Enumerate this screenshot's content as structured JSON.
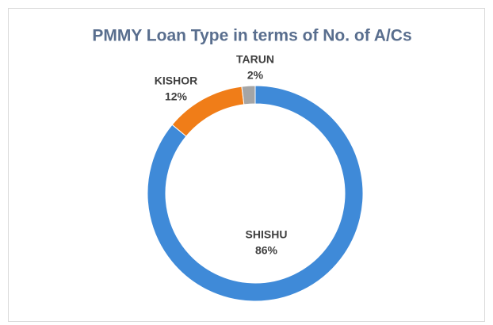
{
  "chart_data": {
    "type": "donut",
    "title": "PMMY Loan Type in terms of No. of A/Cs",
    "categories": [
      "SHISHU",
      "KISHOR",
      "TARUN"
    ],
    "values": [
      86,
      12,
      2
    ],
    "value_labels": [
      "86%",
      "12%",
      "2%"
    ],
    "colors": [
      "#3f8ad8",
      "#f07d18",
      "#a5a5a5"
    ]
  }
}
